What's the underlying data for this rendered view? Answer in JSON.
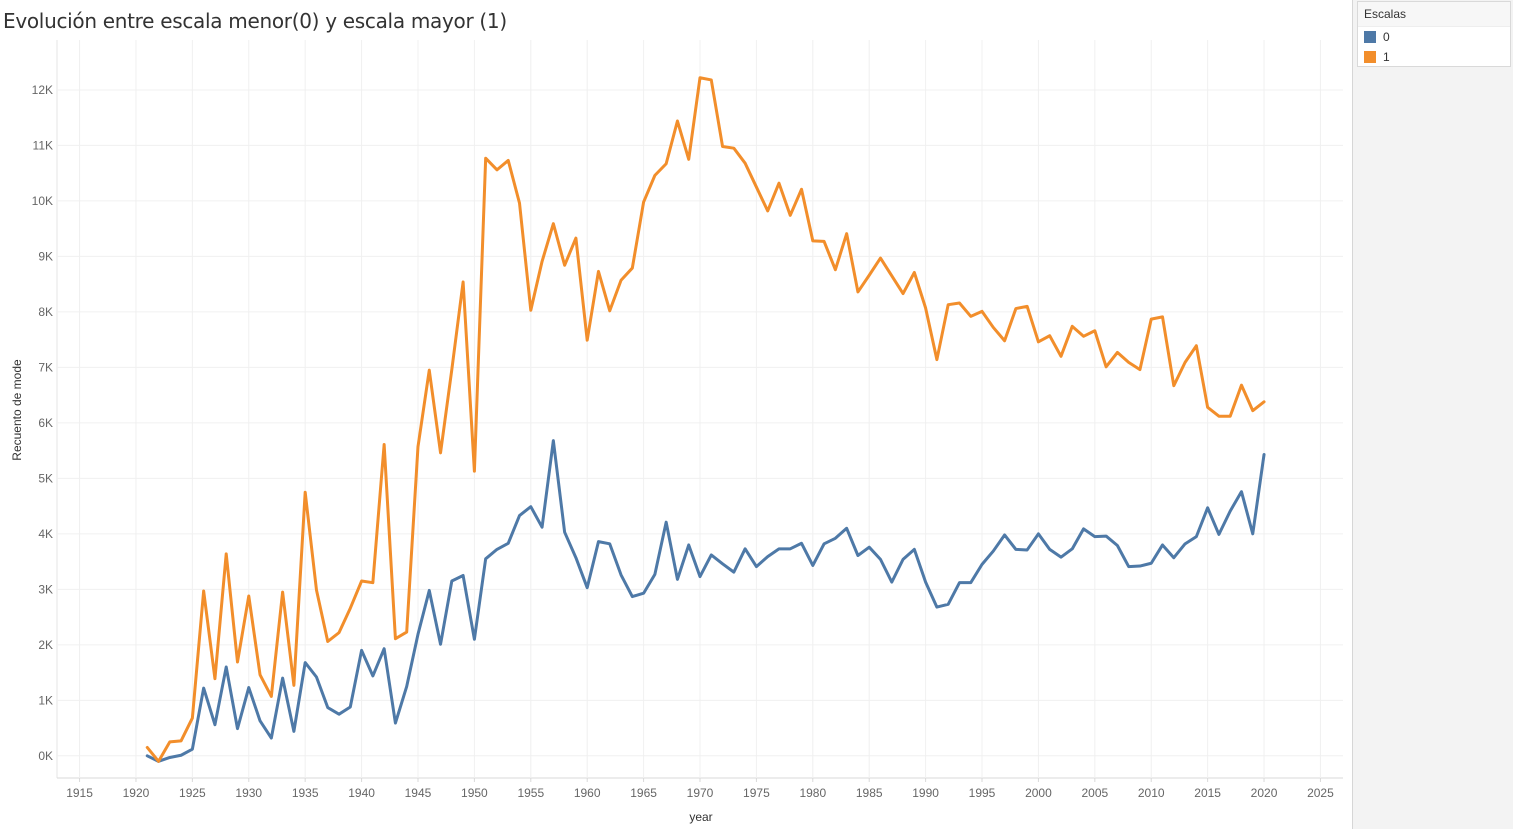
{
  "chart_data": {
    "type": "line",
    "title": "Evolución entre escala menor(0) y escala mayor (1)",
    "xlabel": "year",
    "ylabel": "Recuento de mode",
    "xlim": [
      1913,
      2027
    ],
    "ylim": [
      -400,
      12900
    ],
    "xticks": [
      1915,
      1920,
      1925,
      1930,
      1935,
      1940,
      1945,
      1950,
      1955,
      1960,
      1965,
      1970,
      1975,
      1980,
      1985,
      1990,
      1995,
      2000,
      2005,
      2010,
      2015,
      2020,
      2025
    ],
    "xtick_labels": [
      "1915",
      "1920",
      "1925",
      "1930",
      "1935",
      "1940",
      "1945",
      "1950",
      "1955",
      "1960",
      "1965",
      "1970",
      "1975",
      "1980",
      "1985",
      "1990",
      "1995",
      "2000",
      "2005",
      "2010",
      "2015",
      "2020",
      "2025"
    ],
    "yticks": [
      0,
      1000,
      2000,
      3000,
      4000,
      5000,
      6000,
      7000,
      8000,
      9000,
      10000,
      11000,
      12000
    ],
    "ytick_labels": [
      "0K",
      "1K",
      "2K",
      "3K",
      "4K",
      "5K",
      "6K",
      "7K",
      "8K",
      "9K",
      "10K",
      "11K",
      "12K"
    ],
    "grid": true,
    "legend": {
      "title": "Escalas",
      "position": "top-right"
    },
    "x": [
      1921,
      1922,
      1923,
      1924,
      1925,
      1926,
      1927,
      1928,
      1929,
      1930,
      1931,
      1932,
      1933,
      1934,
      1935,
      1936,
      1937,
      1938,
      1939,
      1940,
      1941,
      1942,
      1943,
      1944,
      1945,
      1946,
      1947,
      1948,
      1949,
      1950,
      1951,
      1952,
      1953,
      1954,
      1955,
      1956,
      1957,
      1958,
      1959,
      1960,
      1961,
      1962,
      1963,
      1964,
      1965,
      1966,
      1967,
      1968,
      1969,
      1970,
      1971,
      1972,
      1973,
      1974,
      1975,
      1976,
      1977,
      1978,
      1979,
      1980,
      1981,
      1982,
      1983,
      1984,
      1985,
      1986,
      1987,
      1988,
      1989,
      1990,
      1991,
      1992,
      1993,
      1994,
      1995,
      1996,
      1997,
      1998,
      1999,
      2000,
      2001,
      2002,
      2003,
      2004,
      2005,
      2006,
      2007,
      2008,
      2009,
      2010,
      2011,
      2012,
      2013,
      2014,
      2015,
      2016,
      2017,
      2018,
      2019,
      2020
    ],
    "series": [
      {
        "name": "0",
        "color": "#4e79a7",
        "values": [
          0,
          -100,
          -30,
          10,
          120,
          1220,
          560,
          1600,
          490,
          1230,
          630,
          320,
          1400,
          440,
          1680,
          1420,
          870,
          750,
          880,
          1900,
          1440,
          1930,
          590,
          1250,
          2190,
          2980,
          2010,
          3150,
          3250,
          2100,
          3550,
          3720,
          3830,
          4330,
          4490,
          4120,
          5680,
          4030,
          3570,
          3030,
          3860,
          3820,
          3260,
          2870,
          2930,
          3270,
          4210,
          3180,
          3800,
          3230,
          3620,
          3460,
          3310,
          3730,
          3410,
          3590,
          3730,
          3730,
          3830,
          3430,
          3820,
          3920,
          4100,
          3610,
          3760,
          3540,
          3130,
          3540,
          3720,
          3130,
          2680,
          2730,
          3120,
          3120,
          3450,
          3690,
          3980,
          3720,
          3710,
          4000,
          3720,
          3580,
          3730,
          4090,
          3950,
          3960,
          3790,
          3410,
          3420,
          3470,
          3800,
          3570,
          3820,
          3950,
          4470,
          3990,
          4410,
          4760,
          4000,
          5430
        ]
      },
      {
        "name": "1",
        "color": "#f28e2b",
        "values": [
          150,
          -100,
          250,
          270,
          680,
          2970,
          1390,
          3640,
          1690,
          2880,
          1460,
          1070,
          2950,
          1270,
          4750,
          2990,
          2060,
          2220,
          2660,
          3150,
          3120,
          5610,
          2110,
          2230,
          5570,
          6950,
          5460,
          6960,
          8540,
          5130,
          10770,
          10560,
          10730,
          9960,
          8030,
          8910,
          9590,
          8840,
          9330,
          7490,
          8730,
          8020,
          8570,
          8790,
          9980,
          10460,
          10670,
          11440,
          10750,
          12220,
          12180,
          10980,
          10950,
          10680,
          10250,
          9820,
          10320,
          9740,
          10210,
          9280,
          9270,
          8760,
          9410,
          8360,
          8660,
          8970,
          8650,
          8330,
          8710,
          8070,
          7140,
          8130,
          8160,
          7920,
          8010,
          7720,
          7480,
          8060,
          8100,
          7460,
          7570,
          7200,
          7740,
          7560,
          7660,
          7010,
          7270,
          7090,
          6960,
          7870,
          7910,
          6670,
          7090,
          7390,
          6280,
          6120,
          6120,
          6680,
          6220,
          6380
        ]
      }
    ]
  }
}
